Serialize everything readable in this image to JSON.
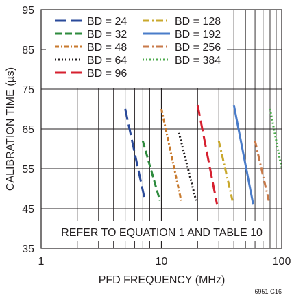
{
  "chart_data": {
    "type": "line",
    "xlabel": "PFD FREQUENCY (MHz)",
    "ylabel": "CALIBRATION TIME (µs)",
    "x_scale": "log",
    "xlim": [
      1,
      100
    ],
    "ylim": [
      35,
      95
    ],
    "x_ticks": [
      {
        "value": 1,
        "label": "1"
      },
      {
        "value": 10,
        "label": "10"
      },
      {
        "value": 100,
        "label": "100"
      }
    ],
    "y_ticks": [
      {
        "value": 35,
        "label": "35"
      },
      {
        "value": 45,
        "label": "45"
      },
      {
        "value": 55,
        "label": "55"
      },
      {
        "value": 65,
        "label": "65"
      },
      {
        "value": 75,
        "label": "75"
      },
      {
        "value": 85,
        "label": "85"
      },
      {
        "value": 95,
        "label": "95"
      }
    ],
    "grid": true,
    "legend_position": "top-left",
    "annotation": "REFER TO EQUATION 1 AND TABLE 10",
    "figure_id": "6951 G16",
    "series": [
      {
        "name": "BD = 24",
        "color": "#2a4a9a",
        "dash": "long-dash",
        "x": [
          5,
          7.3
        ],
        "y": [
          70,
          47
        ]
      },
      {
        "name": "BD = 32",
        "color": "#2e8b3e",
        "dash": "dash",
        "x": [
          7,
          9.7
        ],
        "y": [
          62,
          47
        ]
      },
      {
        "name": "BD = 48",
        "color": "#c87a2e",
        "dash": "dot-dash",
        "x": [
          10,
          14.6
        ],
        "y": [
          70,
          47
        ]
      },
      {
        "name": "BD = 64",
        "color": "#231f20",
        "dash": "dot",
        "x": [
          14,
          19.4
        ],
        "y": [
          64,
          47
        ]
      },
      {
        "name": "BD = 96",
        "color": "#d6202f",
        "dash": "long-dash",
        "x": [
          20,
          29
        ],
        "y": [
          71,
          46
        ]
      },
      {
        "name": "BD = 128",
        "color": "#c9a82c",
        "dash": "dash-dot",
        "x": [
          30,
          39
        ],
        "y": [
          62,
          47
        ]
      },
      {
        "name": "BD = 192",
        "color": "#4a7cc9",
        "dash": "solid",
        "x": [
          40,
          58
        ],
        "y": [
          71,
          46
        ]
      },
      {
        "name": "BD = 256",
        "color": "#c87a4a",
        "dash": "dash-dot",
        "x": [
          60,
          78
        ],
        "y": [
          62,
          47
        ]
      },
      {
        "name": "BD = 384",
        "color": "#4aaa4a",
        "dash": "dot",
        "x": [
          80,
          100
        ],
        "y": [
          70,
          55
        ]
      }
    ]
  }
}
